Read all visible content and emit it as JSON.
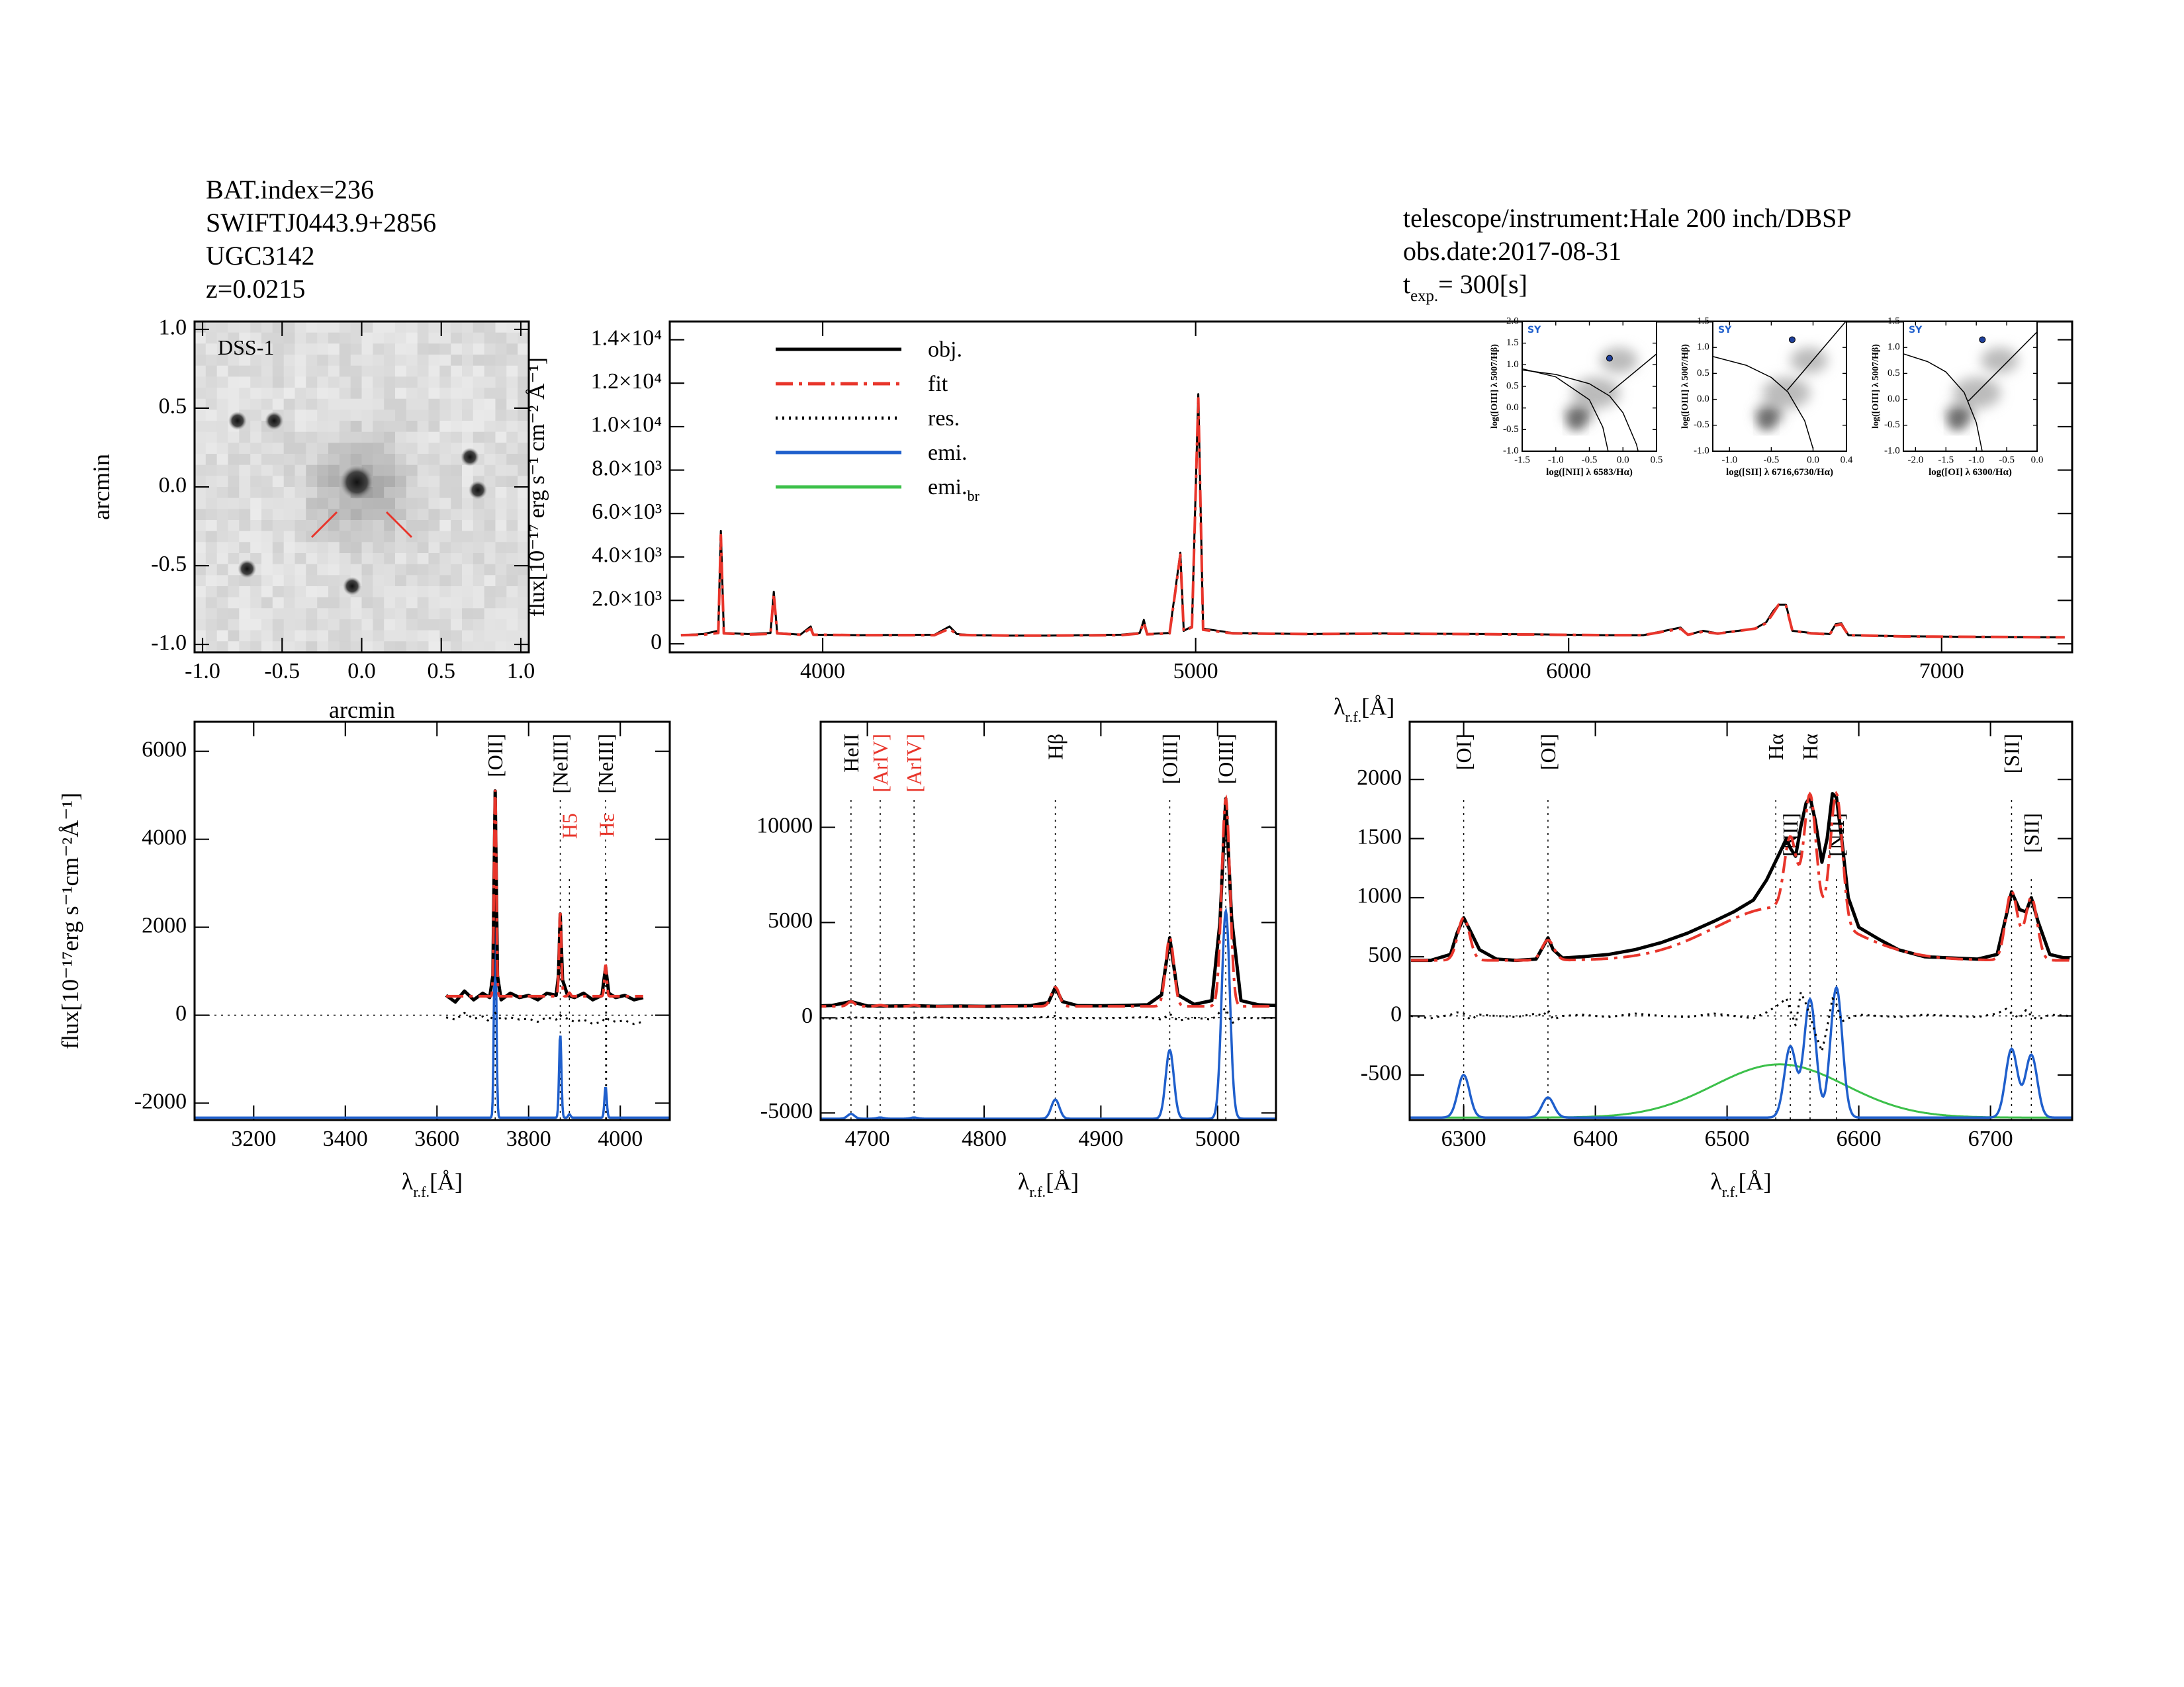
{
  "header": {
    "lines": [
      "BAT.index=236",
      "SWIFTJ0443.9+2856",
      "UGC3142",
      "z=0.0215"
    ],
    "instrument": "telescope/instrument:Hale 200 inch/DBSP",
    "obs_date": "obs.date:2017-08-31",
    "texp": {
      "text": "t",
      "sub": "exp.",
      "unit": "=  300[s]"
    }
  },
  "chart_data": [
    {
      "type": "image",
      "label": "DSS-1",
      "xlabel": {
        "text": "arcmin"
      },
      "ylabel": {
        "text": "arcmin"
      },
      "xlim": [
        -1.05,
        1.05
      ],
      "ylim": [
        -1.05,
        1.05
      ],
      "xticks": [
        {
          "value": -1,
          "label": "-1.0"
        },
        -0.5,
        {
          "value": 0,
          "label": "0.0"
        },
        0.5,
        {
          "value": 1,
          "label": "1.0"
        }
      ],
      "yticks": [
        {
          "value": -1,
          "label": "-1.0"
        },
        -0.5,
        {
          "value": 0,
          "label": "0.0"
        },
        0.5,
        {
          "value": 1,
          "label": "1.0"
        }
      ],
      "sources": {
        "x": [
          -0.03,
          -0.78,
          -0.55,
          0.68,
          0.73,
          -0.72,
          -0.06
        ],
        "y": [
          0.03,
          0.42,
          0.42,
          0.19,
          -0.02,
          -0.52,
          -0.63
        ]
      }
    },
    {
      "type": "spectrum",
      "xlim": [
        3590,
        7350
      ],
      "ylim": [
        -390,
        14840
      ],
      "xticks": [
        4000,
        5000,
        6000,
        7000
      ],
      "yticks": [
        0,
        {
          "value": 2000,
          "label": "2.0×10³"
        },
        {
          "value": 4000,
          "label": "4.0×10³"
        },
        {
          "value": 6000,
          "label": "6.0×10³"
        },
        {
          "value": 8000,
          "label": "8.0×10³"
        },
        {
          "value": 10000,
          "label": "1.0×10⁴"
        },
        {
          "value": 12000,
          "label": "1.2×10⁴"
        },
        {
          "value": 14000,
          "label": "1.4×10⁴"
        }
      ],
      "xlabel": {
        "text": "λ",
        "sub": "r.f.",
        "unit": "[Å]"
      },
      "ylabel": {
        "text": "flux[10⁻¹⁷ erg s⁻¹ cm⁻² Å⁻¹]"
      },
      "x": [
        3620,
        3680,
        3720,
        3727,
        3735,
        3800,
        3860,
        3869,
        3878,
        3940,
        3968,
        3975,
        4100,
        4200,
        4300,
        4340,
        4360,
        4400,
        4500,
        4600,
        4700,
        4800,
        4850,
        4861,
        4870,
        4930,
        4959,
        4968,
        4990,
        5007,
        5020,
        5100,
        5300,
        5500,
        5700,
        5900,
        6100,
        6200,
        6300,
        6320,
        6360,
        6400,
        6500,
        6530,
        6548,
        6563,
        6583,
        6600,
        6650,
        6700,
        6716,
        6731,
        6750,
        6900,
        7100,
        7300,
        7330
      ],
      "series": [
        {
          "name": "obj.",
          "color": "#000000",
          "style": "solid",
          "values": [
            400,
            450,
            600,
            5200,
            500,
            450,
            500,
            2400,
            500,
            420,
            800,
            420,
            400,
            410,
            420,
            800,
            450,
            400,
            380,
            380,
            400,
            420,
            500,
            1100,
            450,
            500,
            4200,
            600,
            800,
            11500,
            700,
            500,
            450,
            480,
            460,
            440,
            400,
            400,
            750,
            420,
            600,
            480,
            700,
            1000,
            1500,
            1800,
            1800,
            600,
            500,
            450,
            900,
            950,
            400,
            350,
            320,
            300,
            300
          ]
        },
        {
          "name": "fit",
          "color": "#e8352b",
          "style": "dashdot",
          "values": [
            400,
            420,
            500,
            5000,
            480,
            430,
            460,
            2300,
            480,
            420,
            700,
            420,
            400,
            400,
            400,
            700,
            420,
            400,
            380,
            380,
            390,
            400,
            480,
            1000,
            440,
            480,
            4100,
            580,
            760,
            11300,
            650,
            480,
            450,
            470,
            450,
            430,
            400,
            400,
            700,
            420,
            560,
            470,
            700,
            950,
            1400,
            1800,
            1750,
            600,
            480,
            440,
            850,
            900,
            400,
            340,
            320,
            300,
            300
          ]
        },
        {
          "name": "res.",
          "color": "#000000",
          "style": "dotted"
        },
        {
          "name": "emi.",
          "color": "#1f5fcc",
          "style": "solid"
        },
        {
          "name": "emi.",
          "name_sub": "br",
          "color": "#3cc04a",
          "style": "solid"
        }
      ]
    },
    {
      "type": "bpt",
      "tag": "SY",
      "xlabel": "log([NII] λ 6583/Hα)",
      "ylabel": "log([OIII] λ 5007/Hβ)",
      "xlim": [
        -1.5,
        0.5
      ],
      "ylim": [
        -1,
        2
      ],
      "xticks": [
        -1.5,
        {
          "value": -1,
          "label": "-1.0"
        },
        -0.5,
        {
          "value": 0,
          "label": "0.0"
        },
        0.5
      ],
      "yticks": [
        {
          "value": -1,
          "label": "-1.0"
        },
        -0.5,
        {
          "value": 0,
          "label": "0.0"
        },
        0.5,
        {
          "value": 1,
          "label": "1.0"
        },
        1.5,
        {
          "value": 2,
          "label": "2.0"
        }
      ],
      "point": {
        "x": -0.2,
        "y": 1.15
      },
      "curves": [
        {
          "x": [
            -1.5,
            -1,
            -0.5,
            -0.2,
            0,
            0.2,
            0.3
          ],
          "values": [
            0.88,
            0.775,
            0.561,
            0.28,
            -0.11,
            -0.84,
            -1.46
          ]
        },
        {
          "x": [
            -1.5,
            -1,
            -0.5,
            -0.3,
            -0.2
          ],
          "values": [
            0.906,
            0.719,
            0.191,
            -0.443,
            -1.14
          ]
        },
        {
          "x": [
            -0.2,
            0.5
          ],
          "values": [
            0.35,
            1.25
          ]
        }
      ]
    },
    {
      "type": "bpt",
      "tag": "SY",
      "xlabel": "log([SII] λ 6716,6730/Hα)",
      "ylabel": "log([OIII] λ 5007/Hβ)",
      "xlim": [
        -1.2,
        0.4
      ],
      "ylim": [
        -1,
        1.5
      ],
      "xticks": [
        {
          "value": -1,
          "label": "-1.0"
        },
        -0.5,
        {
          "value": 0,
          "label": "0.0"
        },
        0.4
      ],
      "yticks": [
        {
          "value": -1,
          "label": "-1.0"
        },
        -0.5,
        {
          "value": 0,
          "label": "0.0"
        },
        0.5,
        {
          "value": 1,
          "label": "1.0"
        },
        1.5
      ],
      "point": {
        "x": -0.25,
        "y": 1.15
      },
      "curves": [
        {
          "x": [
            -1.2,
            -0.8,
            -0.5,
            -0.3,
            -0.1,
            0
          ],
          "values": [
            0.826,
            0.657,
            0.422,
            0.139,
            -0.414,
            -0.95
          ]
        },
        {
          "x": [
            -0.31,
            0.4
          ],
          "values": [
            0.174,
            1.516
          ]
        }
      ]
    },
    {
      "type": "bpt",
      "tag": "SY",
      "xlabel": "log([OI] λ 6300/Hα)",
      "ylabel": "log([OIII] λ 5007/Hβ)",
      "xlim": [
        -2.2,
        0
      ],
      "ylim": [
        -1,
        1.5
      ],
      "xticks": [
        {
          "value": -2,
          "label": "-2.0"
        },
        -1.5,
        {
          "value": -1,
          "label": "-1.0"
        },
        -0.5,
        {
          "value": 0,
          "label": "0.0"
        }
      ],
      "yticks": [
        {
          "value": -1,
          "label": "-1.0"
        },
        -0.5,
        {
          "value": 0,
          "label": "0.0"
        },
        0.5,
        {
          "value": 1,
          "label": "1.0"
        },
        1.5
      ],
      "point": {
        "x": -0.9,
        "y": 1.15
      },
      "curves": [
        {
          "x": [
            -2.2,
            -1.8,
            -1.5,
            -1.2,
            -1,
            -0.9
          ],
          "values": [
            0.877,
            0.727,
            0.528,
            0.133,
            -0.45,
            -1.02
          ]
        },
        {
          "x": [
            -1.13,
            0
          ],
          "values": [
            -0.033,
            1.3
          ]
        }
      ]
    },
    {
      "type": "spectrum-zoom",
      "xlim": [
        3071,
        4108
      ],
      "ylim": [
        -2384,
        6672
      ],
      "xticks": [
        3200,
        3400,
        3600,
        3800,
        4000
      ],
      "yticks": [
        -2000,
        0,
        2000,
        4000,
        6000
      ],
      "xlabel": {
        "text": "λ",
        "sub": "r.f.",
        "unit": "[Å]"
      },
      "ylabel": {
        "text": "flux[10⁻¹⁷erg s⁻¹cm⁻²Å⁻¹]"
      },
      "x": [
        3620,
        3640,
        3660,
        3680,
        3700,
        3715,
        3722,
        3727,
        3732,
        3740,
        3760,
        3780,
        3800,
        3820,
        3840,
        3860,
        3865,
        3869,
        3874,
        3885,
        3900,
        3920,
        3940,
        3960,
        3968,
        3975,
        3990,
        4010,
        4030,
        4050
      ],
      "obj": [
        450,
        300,
        550,
        350,
        500,
        400,
        900,
        5100,
        900,
        350,
        500,
        400,
        450,
        350,
        500,
        450,
        900,
        2300,
        800,
        450,
        400,
        500,
        350,
        450,
        1100,
        500,
        400,
        450,
        350,
        400
      ],
      "res": [
        -50,
        -100,
        50,
        -80,
        -30,
        -150,
        0,
        50,
        0,
        -100,
        -50,
        -100,
        -80,
        -150,
        -50,
        -100,
        -50,
        0,
        -50,
        -80,
        -150,
        -100,
        -200,
        -150,
        -50,
        -100,
        -150,
        -120,
        -200,
        -150
      ],
      "continuum": 430,
      "emi_offset": -2330,
      "components": [
        {
          "center": 3727,
          "amp": 4700,
          "sigma": 2.5
        },
        {
          "center": 3869,
          "amp": 1900,
          "sigma": 2.5
        },
        {
          "center": 3889,
          "amp": 80,
          "sigma": 2.5
        },
        {
          "center": 3968,
          "amp": 700,
          "sigma": 2.5
        }
      ],
      "lines": [
        {
          "x": 3727,
          "label": "[OII]",
          "color": "#000000"
        },
        {
          "x": 3869,
          "label": "[NeIII]",
          "color": "#000000"
        },
        {
          "x": 3889,
          "label": "H5",
          "color": "#e8352b"
        },
        {
          "x": 3968,
          "label": "[NeIII]",
          "color": "#000000"
        },
        {
          "x": 3970,
          "label": "Hε",
          "color": "#e8352b"
        }
      ]
    },
    {
      "type": "spectrum-zoom",
      "xlim": [
        4660,
        5050
      ],
      "ylim": [
        -5370,
        15540
      ],
      "xticks": [
        4700,
        4800,
        4900,
        5000
      ],
      "yticks": [
        -5000,
        0,
        5000,
        10000
      ],
      "xlabel": {
        "text": "λ",
        "sub": "r.f.",
        "unit": "[Å]"
      },
      "x": [
        4650,
        4670,
        4686,
        4700,
        4720,
        4740,
        4760,
        4780,
        4800,
        4820,
        4840,
        4855,
        4861,
        4867,
        4880,
        4900,
        4920,
        4940,
        4952,
        4959,
        4966,
        4980,
        4995,
        5002,
        5007,
        5012,
        5020,
        5035,
        5050
      ],
      "obj": [
        600,
        650,
        850,
        620,
        610,
        630,
        600,
        610,
        600,
        620,
        640,
        800,
        1600,
        850,
        640,
        630,
        650,
        680,
        1200,
        4200,
        1200,
        700,
        900,
        5000,
        11500,
        5200,
        900,
        680,
        650
      ],
      "res": [
        0,
        -50,
        20,
        0,
        -30,
        0,
        20,
        -20,
        0,
        -40,
        0,
        50,
        100,
        -50,
        0,
        -20,
        0,
        30,
        -100,
        200,
        -150,
        0,
        -100,
        300,
        500,
        -300,
        0,
        -20,
        0
      ],
      "continuum": 600,
      "emi_offset": -5300,
      "components": [
        {
          "center": 4686,
          "amp": 250,
          "sigma": 3
        },
        {
          "center": 4711,
          "amp": 60,
          "sigma": 3
        },
        {
          "center": 4740,
          "amp": 60,
          "sigma": 3
        },
        {
          "center": 4861,
          "amp": 1000,
          "sigma": 3.5
        },
        {
          "center": 4959,
          "amp": 3600,
          "sigma": 3.5
        },
        {
          "center": 5007,
          "amp": 10900,
          "sigma": 3.5
        }
      ],
      "lines": [
        {
          "x": 4686,
          "label": "HeII",
          "color": "#000000"
        },
        {
          "x": 4711,
          "label": "[ArIV]",
          "color": "#e8352b"
        },
        {
          "x": 4740,
          "label": "[ArIV]",
          "color": "#e8352b"
        },
        {
          "x": 4861,
          "label": "Hβ",
          "color": "#000000"
        },
        {
          "x": 4959,
          "label": "[OIII]",
          "color": "#000000"
        },
        {
          "x": 5007,
          "label": "[OIII]",
          "color": "#000000"
        }
      ]
    },
    {
      "type": "spectrum-zoom",
      "xlim": [
        6259,
        6762
      ],
      "ylim": [
        -881,
        2488
      ],
      "xticks": [
        6300,
        6400,
        6500,
        6600,
        6700
      ],
      "yticks": [
        -500,
        0,
        500,
        1000,
        1500,
        2000
      ],
      "xlabel": {
        "text": "λ",
        "sub": "r.f.",
        "unit": "[Å]"
      },
      "x": [
        6260,
        6275,
        6290,
        6295,
        6300,
        6305,
        6312,
        6325,
        6340,
        6355,
        6360,
        6364,
        6368,
        6375,
        6390,
        6410,
        6430,
        6450,
        6470,
        6490,
        6505,
        6520,
        6530,
        6540,
        6545,
        6548,
        6552,
        6556,
        6560,
        6563,
        6567,
        6572,
        6576,
        6580,
        6583,
        6587,
        6592,
        6600,
        6615,
        6630,
        6650,
        6670,
        6690,
        6705,
        6712,
        6716,
        6722,
        6727,
        6731,
        6736,
        6745,
        6760
      ],
      "obj": [
        470,
        470,
        520,
        700,
        830,
        720,
        560,
        480,
        470,
        480,
        580,
        660,
        560,
        490,
        500,
        520,
        560,
        620,
        700,
        800,
        880,
        980,
        1150,
        1380,
        1500,
        1420,
        1350,
        1600,
        1800,
        1850,
        1650,
        1300,
        1500,
        1880,
        1850,
        1500,
        1000,
        750,
        650,
        560,
        500,
        490,
        480,
        520,
        850,
        1050,
        900,
        880,
        1000,
        800,
        520,
        480
      ],
      "res": [
        0,
        -20,
        10,
        30,
        20,
        -30,
        10,
        0,
        -10,
        20,
        0,
        50,
        -30,
        0,
        10,
        -10,
        20,
        0,
        -10,
        20,
        0,
        -20,
        30,
        100,
        150,
        50,
        -80,
        200,
        100,
        0,
        -150,
        -300,
        -100,
        150,
        100,
        -50,
        -20,
        10,
        0,
        -10,
        10,
        0,
        -10,
        20,
        60,
        20,
        -20,
        50,
        0,
        -30,
        10,
        0
      ],
      "continuum": 470,
      "emi_offset": -860,
      "components": [
        {
          "center": 6300,
          "amp": 360,
          "sigma": 4.5
        },
        {
          "center": 6364,
          "amp": 170,
          "sigma": 4.5
        },
        {
          "center": 6548,
          "amp": 600,
          "sigma": 4.5
        },
        {
          "center": 6563,
          "amp": 1000,
          "sigma": 4.5
        },
        {
          "center": 6583,
          "amp": 1100,
          "sigma": 4.5
        },
        {
          "center": 6716,
          "amp": 580,
          "sigma": 4.5
        },
        {
          "center": 6731,
          "amp": 530,
          "sigma": 4.5
        }
      ],
      "broad": {
        "center": 6540,
        "amp": 450,
        "sigma": 50
      },
      "lines": [
        {
          "x": 6300,
          "label": "[OI]",
          "color": "#000000"
        },
        {
          "x": 6364,
          "label": "[OI]",
          "color": "#000000"
        },
        {
          "x": 6537,
          "label": "Hα",
          "color": "#000000"
        },
        {
          "x": 6548,
          "label": "[NII]",
          "color": "#000000"
        },
        {
          "x": 6563,
          "label": "Hα",
          "color": "#000000"
        },
        {
          "x": 6583,
          "label": "[NII]",
          "color": "#000000"
        },
        {
          "x": 6716,
          "label": "[SII]",
          "color": "#000000"
        },
        {
          "x": 6731,
          "label": "[SII]",
          "color": "#000000"
        }
      ]
    }
  ]
}
